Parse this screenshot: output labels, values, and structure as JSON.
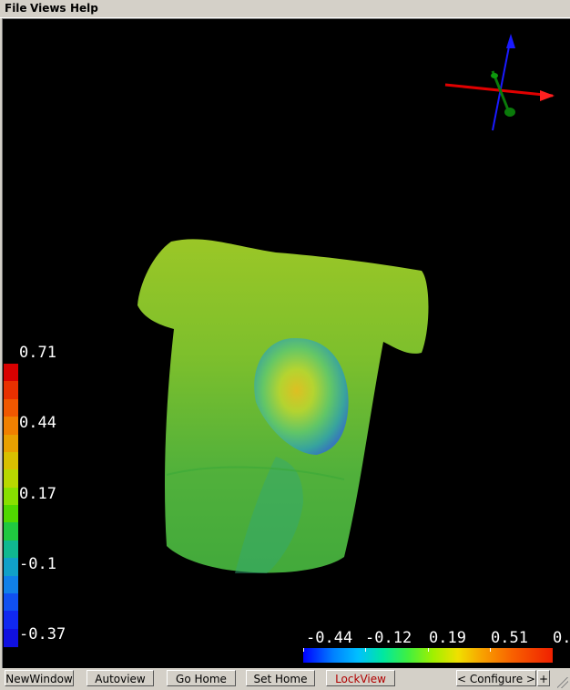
{
  "menu": {
    "items": [
      "File",
      "Views",
      "Help"
    ]
  },
  "colorbar_vertical": {
    "labels": [
      "0.71",
      "0.44",
      "0.17",
      "-0.1",
      "-0.37"
    ],
    "colors": [
      "#d80000",
      "#e83000",
      "#f05800",
      "#f08000",
      "#e8a000",
      "#d8c000",
      "#b8d800",
      "#88e000",
      "#50d800",
      "#20c840",
      "#10b890",
      "#10a0c8",
      "#1080e8",
      "#1050f0",
      "#1028f0",
      "#1010e0"
    ]
  },
  "colorbar_horizontal": {
    "labels": [
      "-0.44",
      "-0.12",
      "0.19",
      "0.51",
      "0."
    ]
  },
  "toolbar": {
    "new_window": "NewWindow",
    "autoview": "Autoview",
    "go_home": "Go Home",
    "set_home": "Set Home",
    "lock_view": "LockView",
    "configure": "< Configure >",
    "plus": "+"
  }
}
